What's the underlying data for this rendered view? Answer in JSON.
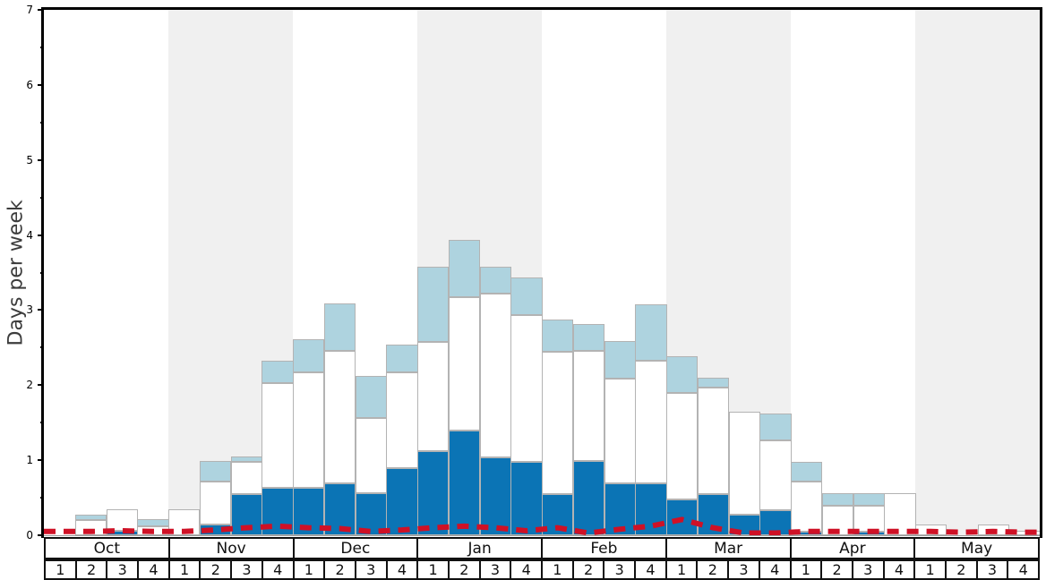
{
  "colors": {
    "dark_blue": "#0b74b5",
    "white_bar": "#ffffff",
    "light_blue": "#aed3df",
    "red_line": "#cf1126",
    "month_band": "#f0f0f0",
    "bar_border": "#b3b3b3",
    "axis_text": "#000000",
    "y_title_text": "#3c3c3c"
  },
  "chart_data": {
    "type": "bar",
    "stacked": true,
    "title": "",
    "ylabel": "Days per week",
    "xlabel": "",
    "ylim": [
      0,
      7
    ],
    "y_tick_labels": [
      "0",
      "1",
      "2",
      "3",
      "4",
      "5",
      "6",
      "7"
    ],
    "y_minor_tick_step": 0.5,
    "grid": false,
    "legend": "none",
    "months": [
      "Oct",
      "Nov",
      "Dec",
      "Jan",
      "Feb",
      "Mar",
      "Apr",
      "May"
    ],
    "week_numbers": [
      "1",
      "2",
      "3",
      "4"
    ],
    "shaded_months": [
      "Nov",
      "Jan",
      "Mar",
      "May"
    ],
    "categories": [
      "Oct-1",
      "Oct-2",
      "Oct-3",
      "Oct-4",
      "Nov-1",
      "Nov-2",
      "Nov-3",
      "Nov-4",
      "Dec-1",
      "Dec-2",
      "Dec-3",
      "Dec-4",
      "Jan-1",
      "Jan-2",
      "Jan-3",
      "Jan-4",
      "Feb-1",
      "Feb-2",
      "Feb-3",
      "Feb-4",
      "Mar-1",
      "Mar-2",
      "Mar-3",
      "Mar-4",
      "Apr-1",
      "Apr-2",
      "Apr-3",
      "Apr-4",
      "May-1",
      "May-2",
      "May-3",
      "May-4"
    ],
    "series": [
      {
        "name": "dark-blue",
        "color": "#0b74b5",
        "values": [
          0,
          0,
          0.06,
          0,
          0,
          0.14,
          0.55,
          0.63,
          0.63,
          0.69,
          0.56,
          0.9,
          1.12,
          1.39,
          1.04,
          0.98,
          0.55,
          0.99,
          0.69,
          0.69,
          0.48,
          0.55,
          0.28,
          0.33,
          0.05,
          0,
          0.05,
          0,
          0,
          0,
          0,
          0
        ]
      },
      {
        "name": "white",
        "color": "#ffffff",
        "values": [
          0,
          0.2,
          0.29,
          0.12,
          0.35,
          0.57,
          0.43,
          1.4,
          1.54,
          1.77,
          1.0,
          1.27,
          1.46,
          1.78,
          2.18,
          1.95,
          1.9,
          1.47,
          1.4,
          1.63,
          1.42,
          1.42,
          1.36,
          0.93,
          0.67,
          0.39,
          0.34,
          0.56,
          0.14,
          0,
          0.14,
          0.06
        ]
      },
      {
        "name": "light-blue",
        "color": "#aed3df",
        "values": [
          0,
          0.08,
          0,
          0.09,
          0,
          0.28,
          0.07,
          0.3,
          0.44,
          0.63,
          0.56,
          0.37,
          1.0,
          0.77,
          0.36,
          0.5,
          0.42,
          0.35,
          0.5,
          0.76,
          0.49,
          0.13,
          0,
          0.36,
          0.26,
          0.17,
          0.17,
          0,
          0,
          0,
          0,
          0
        ]
      }
    ],
    "line_series": {
      "name": "red-dashed-line",
      "color": "#cf1126",
      "style": "dashed",
      "values": [
        0.05,
        0.05,
        0.06,
        0.05,
        0.05,
        0.07,
        0.1,
        0.12,
        0.1,
        0.09,
        0.05,
        0.07,
        0.1,
        0.12,
        0.1,
        0.06,
        0.1,
        0.03,
        0.08,
        0.12,
        0.21,
        0.1,
        0.03,
        0.03,
        0.05,
        0.05,
        0.05,
        0.05,
        0.05,
        0.04,
        0.05,
        0.04
      ]
    }
  }
}
